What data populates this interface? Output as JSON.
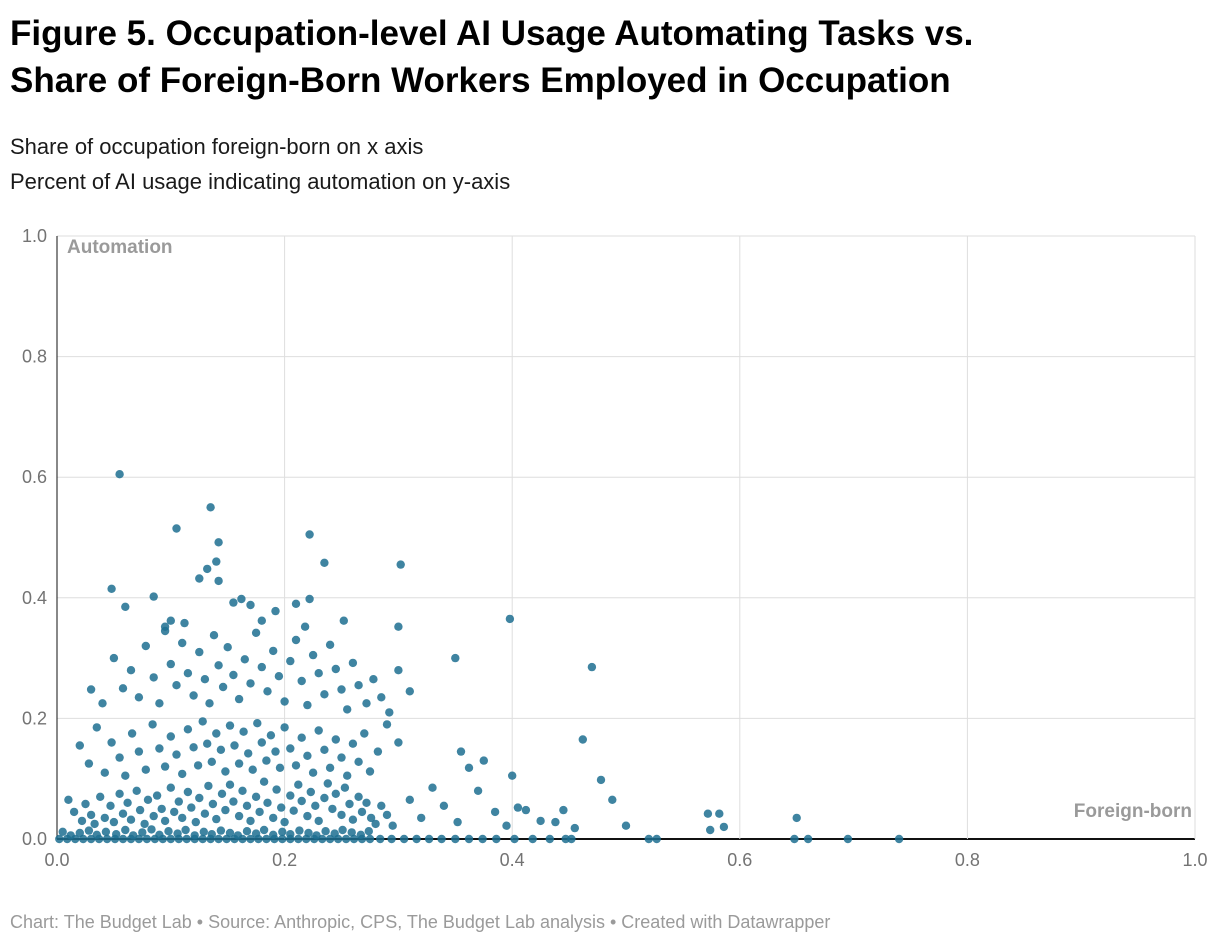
{
  "header": {
    "title_line1": "Figure 5. Occupation-level AI Usage Automating Tasks vs.",
    "title_line2": "Share of Foreign-Born Workers Employed in Occupation",
    "subtitle_line1": "Share of occupation foreign-born on x axis",
    "subtitle_line2": "Percent of AI usage indicating automation on y-axis"
  },
  "footer": {
    "text": "Chart: The Budget Lab • Source: Anthropic, CPS, The Budget Lab analysis • Created with Datawrapper"
  },
  "chart_data": {
    "type": "scatter",
    "title": "Figure 5. Occupation-level AI Usage Automating Tasks vs. Share of Foreign-Born Workers Employed in Occupation",
    "xlabel": "Foreign-born",
    "ylabel": "Automation",
    "xlim": [
      0,
      1
    ],
    "ylim": [
      0,
      1
    ],
    "xticks": [
      0,
      0.2,
      0.4,
      0.6,
      0.8,
      1
    ],
    "yticks": [
      0,
      0.2,
      0.4,
      0.6,
      0.8,
      1
    ],
    "grid": true,
    "legend": "none",
    "grid_color": "#dedede",
    "axis_color": "#111111",
    "tick_label_color": "#737373",
    "axis_label_color": "#9a9a9a",
    "point_color": "#1d6f91",
    "point_opacity": 0.85,
    "point_radius": 4.2,
    "points": [
      [
        0.002,
        0
      ],
      [
        0.009,
        0
      ],
      [
        0.016,
        0
      ],
      [
        0.023,
        0
      ],
      [
        0.03,
        0
      ],
      [
        0.037,
        0
      ],
      [
        0.044,
        0
      ],
      [
        0.051,
        0
      ],
      [
        0.058,
        0
      ],
      [
        0.065,
        0
      ],
      [
        0.072,
        0
      ],
      [
        0.079,
        0
      ],
      [
        0.086,
        0
      ],
      [
        0.093,
        0
      ],
      [
        0.1,
        0
      ],
      [
        0.107,
        0
      ],
      [
        0.114,
        0
      ],
      [
        0.121,
        0
      ],
      [
        0.128,
        0
      ],
      [
        0.135,
        0
      ],
      [
        0.142,
        0
      ],
      [
        0.149,
        0
      ],
      [
        0.156,
        0
      ],
      [
        0.163,
        0
      ],
      [
        0.17,
        0
      ],
      [
        0.177,
        0
      ],
      [
        0.184,
        0
      ],
      [
        0.191,
        0
      ],
      [
        0.198,
        0
      ],
      [
        0.205,
        0
      ],
      [
        0.212,
        0
      ],
      [
        0.219,
        0
      ],
      [
        0.226,
        0
      ],
      [
        0.233,
        0
      ],
      [
        0.24,
        0
      ],
      [
        0.247,
        0
      ],
      [
        0.254,
        0
      ],
      [
        0.261,
        0
      ],
      [
        0.268,
        0
      ],
      [
        0.275,
        0
      ],
      [
        0.284,
        0
      ],
      [
        0.294,
        0
      ],
      [
        0.305,
        0
      ],
      [
        0.316,
        0
      ],
      [
        0.327,
        0
      ],
      [
        0.338,
        0
      ],
      [
        0.35,
        0
      ],
      [
        0.362,
        0
      ],
      [
        0.374,
        0
      ],
      [
        0.386,
        0
      ],
      [
        0.402,
        0
      ],
      [
        0.418,
        0
      ],
      [
        0.433,
        0
      ],
      [
        0.447,
        0
      ],
      [
        0.452,
        0
      ],
      [
        0.52,
        0
      ],
      [
        0.527,
        0
      ],
      [
        0.648,
        0
      ],
      [
        0.66,
        0
      ],
      [
        0.695,
        0
      ],
      [
        0.74,
        0
      ],
      [
        0.005,
        0.012
      ],
      [
        0.012,
        0.006
      ],
      [
        0.02,
        0.01
      ],
      [
        0.028,
        0.014
      ],
      [
        0.035,
        0.007
      ],
      [
        0.043,
        0.012
      ],
      [
        0.052,
        0.008
      ],
      [
        0.06,
        0.015
      ],
      [
        0.067,
        0.006
      ],
      [
        0.075,
        0.011
      ],
      [
        0.083,
        0.016
      ],
      [
        0.09,
        0.007
      ],
      [
        0.098,
        0.013
      ],
      [
        0.106,
        0.009
      ],
      [
        0.113,
        0.015
      ],
      [
        0.121,
        0.006
      ],
      [
        0.129,
        0.012
      ],
      [
        0.136,
        0.008
      ],
      [
        0.144,
        0.014
      ],
      [
        0.152,
        0.01
      ],
      [
        0.159,
        0.006
      ],
      [
        0.167,
        0.013
      ],
      [
        0.175,
        0.009
      ],
      [
        0.182,
        0.015
      ],
      [
        0.19,
        0.007
      ],
      [
        0.198,
        0.012
      ],
      [
        0.205,
        0.008
      ],
      [
        0.213,
        0.014
      ],
      [
        0.221,
        0.01
      ],
      [
        0.228,
        0.006
      ],
      [
        0.236,
        0.013
      ],
      [
        0.244,
        0.009
      ],
      [
        0.251,
        0.015
      ],
      [
        0.259,
        0.011
      ],
      [
        0.267,
        0.007
      ],
      [
        0.274,
        0.013
      ],
      [
        0.01,
        0.065
      ],
      [
        0.015,
        0.045
      ],
      [
        0.022,
        0.03
      ],
      [
        0.025,
        0.058
      ],
      [
        0.03,
        0.04
      ],
      [
        0.033,
        0.025
      ],
      [
        0.038,
        0.07
      ],
      [
        0.042,
        0.035
      ],
      [
        0.047,
        0.055
      ],
      [
        0.05,
        0.028
      ],
      [
        0.055,
        0.075
      ],
      [
        0.058,
        0.042
      ],
      [
        0.062,
        0.06
      ],
      [
        0.065,
        0.032
      ],
      [
        0.07,
        0.08
      ],
      [
        0.073,
        0.048
      ],
      [
        0.077,
        0.025
      ],
      [
        0.08,
        0.065
      ],
      [
        0.085,
        0.038
      ],
      [
        0.088,
        0.072
      ],
      [
        0.092,
        0.05
      ],
      [
        0.095,
        0.03
      ],
      [
        0.1,
        0.085
      ],
      [
        0.103,
        0.045
      ],
      [
        0.107,
        0.062
      ],
      [
        0.11,
        0.035
      ],
      [
        0.115,
        0.078
      ],
      [
        0.118,
        0.052
      ],
      [
        0.122,
        0.028
      ],
      [
        0.125,
        0.068
      ],
      [
        0.13,
        0.042
      ],
      [
        0.133,
        0.088
      ],
      [
        0.137,
        0.058
      ],
      [
        0.14,
        0.033
      ],
      [
        0.145,
        0.075
      ],
      [
        0.148,
        0.048
      ],
      [
        0.152,
        0.09
      ],
      [
        0.155,
        0.062
      ],
      [
        0.16,
        0.038
      ],
      [
        0.163,
        0.08
      ],
      [
        0.167,
        0.055
      ],
      [
        0.17,
        0.03
      ],
      [
        0.175,
        0.07
      ],
      [
        0.178,
        0.045
      ],
      [
        0.182,
        0.095
      ],
      [
        0.185,
        0.06
      ],
      [
        0.19,
        0.035
      ],
      [
        0.193,
        0.082
      ],
      [
        0.197,
        0.052
      ],
      [
        0.2,
        0.028
      ],
      [
        0.205,
        0.072
      ],
      [
        0.208,
        0.047
      ],
      [
        0.212,
        0.09
      ],
      [
        0.215,
        0.063
      ],
      [
        0.22,
        0.038
      ],
      [
        0.223,
        0.078
      ],
      [
        0.227,
        0.055
      ],
      [
        0.23,
        0.03
      ],
      [
        0.235,
        0.068
      ],
      [
        0.238,
        0.092
      ],
      [
        0.242,
        0.05
      ],
      [
        0.245,
        0.075
      ],
      [
        0.25,
        0.04
      ],
      [
        0.253,
        0.085
      ],
      [
        0.257,
        0.058
      ],
      [
        0.26,
        0.032
      ],
      [
        0.265,
        0.07
      ],
      [
        0.268,
        0.045
      ],
      [
        0.272,
        0.06
      ],
      [
        0.276,
        0.035
      ],
      [
        0.28,
        0.025
      ],
      [
        0.285,
        0.055
      ],
      [
        0.29,
        0.04
      ],
      [
        0.295,
        0.022
      ],
      [
        0.31,
        0.065
      ],
      [
        0.32,
        0.035
      ],
      [
        0.02,
        0.155
      ],
      [
        0.028,
        0.125
      ],
      [
        0.035,
        0.185
      ],
      [
        0.042,
        0.11
      ],
      [
        0.048,
        0.16
      ],
      [
        0.055,
        0.135
      ],
      [
        0.06,
        0.105
      ],
      [
        0.066,
        0.175
      ],
      [
        0.072,
        0.145
      ],
      [
        0.078,
        0.115
      ],
      [
        0.084,
        0.19
      ],
      [
        0.09,
        0.15
      ],
      [
        0.095,
        0.12
      ],
      [
        0.1,
        0.17
      ],
      [
        0.105,
        0.14
      ],
      [
        0.11,
        0.108
      ],
      [
        0.115,
        0.182
      ],
      [
        0.12,
        0.152
      ],
      [
        0.124,
        0.122
      ],
      [
        0.128,
        0.195
      ],
      [
        0.132,
        0.158
      ],
      [
        0.136,
        0.128
      ],
      [
        0.14,
        0.175
      ],
      [
        0.144,
        0.148
      ],
      [
        0.148,
        0.112
      ],
      [
        0.152,
        0.188
      ],
      [
        0.156,
        0.155
      ],
      [
        0.16,
        0.125
      ],
      [
        0.164,
        0.178
      ],
      [
        0.168,
        0.142
      ],
      [
        0.172,
        0.115
      ],
      [
        0.176,
        0.192
      ],
      [
        0.18,
        0.16
      ],
      [
        0.184,
        0.13
      ],
      [
        0.188,
        0.172
      ],
      [
        0.192,
        0.145
      ],
      [
        0.196,
        0.118
      ],
      [
        0.2,
        0.185
      ],
      [
        0.205,
        0.15
      ],
      [
        0.21,
        0.122
      ],
      [
        0.215,
        0.168
      ],
      [
        0.22,
        0.138
      ],
      [
        0.225,
        0.11
      ],
      [
        0.23,
        0.18
      ],
      [
        0.235,
        0.148
      ],
      [
        0.24,
        0.118
      ],
      [
        0.245,
        0.165
      ],
      [
        0.25,
        0.135
      ],
      [
        0.255,
        0.105
      ],
      [
        0.26,
        0.158
      ],
      [
        0.265,
        0.128
      ],
      [
        0.27,
        0.175
      ],
      [
        0.275,
        0.112
      ],
      [
        0.282,
        0.145
      ],
      [
        0.29,
        0.19
      ],
      [
        0.3,
        0.16
      ],
      [
        0.355,
        0.145
      ],
      [
        0.375,
        0.13
      ],
      [
        0.4,
        0.105
      ],
      [
        0.462,
        0.165
      ],
      [
        0.03,
        0.248
      ],
      [
        0.04,
        0.225
      ],
      [
        0.05,
        0.3
      ],
      [
        0.058,
        0.25
      ],
      [
        0.065,
        0.28
      ],
      [
        0.072,
        0.235
      ],
      [
        0.078,
        0.32
      ],
      [
        0.085,
        0.268
      ],
      [
        0.09,
        0.225
      ],
      [
        0.095,
        0.345
      ],
      [
        0.1,
        0.29
      ],
      [
        0.105,
        0.255
      ],
      [
        0.11,
        0.325
      ],
      [
        0.115,
        0.275
      ],
      [
        0.12,
        0.238
      ],
      [
        0.125,
        0.31
      ],
      [
        0.13,
        0.265
      ],
      [
        0.134,
        0.225
      ],
      [
        0.138,
        0.338
      ],
      [
        0.142,
        0.288
      ],
      [
        0.146,
        0.252
      ],
      [
        0.15,
        0.318
      ],
      [
        0.155,
        0.272
      ],
      [
        0.16,
        0.232
      ],
      [
        0.165,
        0.298
      ],
      [
        0.17,
        0.258
      ],
      [
        0.175,
        0.342
      ],
      [
        0.18,
        0.285
      ],
      [
        0.185,
        0.245
      ],
      [
        0.19,
        0.312
      ],
      [
        0.195,
        0.27
      ],
      [
        0.2,
        0.228
      ],
      [
        0.205,
        0.295
      ],
      [
        0.21,
        0.33
      ],
      [
        0.215,
        0.262
      ],
      [
        0.22,
        0.222
      ],
      [
        0.225,
        0.305
      ],
      [
        0.23,
        0.275
      ],
      [
        0.235,
        0.24
      ],
      [
        0.24,
        0.322
      ],
      [
        0.245,
        0.282
      ],
      [
        0.25,
        0.248
      ],
      [
        0.255,
        0.215
      ],
      [
        0.26,
        0.292
      ],
      [
        0.265,
        0.255
      ],
      [
        0.272,
        0.225
      ],
      [
        0.278,
        0.265
      ],
      [
        0.285,
        0.235
      ],
      [
        0.292,
        0.21
      ],
      [
        0.3,
        0.28
      ],
      [
        0.31,
        0.245
      ],
      [
        0.35,
        0.3
      ],
      [
        0.47,
        0.285
      ],
      [
        0.048,
        0.415
      ],
      [
        0.06,
        0.385
      ],
      [
        0.085,
        0.402
      ],
      [
        0.095,
        0.352
      ],
      [
        0.1,
        0.362
      ],
      [
        0.112,
        0.358
      ],
      [
        0.125,
        0.432
      ],
      [
        0.132,
        0.448
      ],
      [
        0.14,
        0.46
      ],
      [
        0.142,
        0.428
      ],
      [
        0.155,
        0.392
      ],
      [
        0.162,
        0.398
      ],
      [
        0.17,
        0.388
      ],
      [
        0.18,
        0.362
      ],
      [
        0.192,
        0.378
      ],
      [
        0.21,
        0.39
      ],
      [
        0.218,
        0.352
      ],
      [
        0.222,
        0.398
      ],
      [
        0.235,
        0.458
      ],
      [
        0.252,
        0.362
      ],
      [
        0.3,
        0.352
      ],
      [
        0.302,
        0.455
      ],
      [
        0.398,
        0.365
      ],
      [
        0.055,
        0.605
      ],
      [
        0.105,
        0.515
      ],
      [
        0.135,
        0.55
      ],
      [
        0.142,
        0.492
      ],
      [
        0.222,
        0.505
      ],
      [
        0.33,
        0.085
      ],
      [
        0.34,
        0.055
      ],
      [
        0.352,
        0.028
      ],
      [
        0.362,
        0.118
      ],
      [
        0.37,
        0.08
      ],
      [
        0.385,
        0.045
      ],
      [
        0.395,
        0.022
      ],
      [
        0.405,
        0.052
      ],
      [
        0.412,
        0.048
      ],
      [
        0.425,
        0.03
      ],
      [
        0.438,
        0.028
      ],
      [
        0.445,
        0.048
      ],
      [
        0.455,
        0.018
      ],
      [
        0.478,
        0.098
      ],
      [
        0.488,
        0.065
      ],
      [
        0.5,
        0.022
      ],
      [
        0.572,
        0.042
      ],
      [
        0.582,
        0.042
      ],
      [
        0.574,
        0.015
      ],
      [
        0.586,
        0.02
      ],
      [
        0.65,
        0.035
      ]
    ]
  }
}
